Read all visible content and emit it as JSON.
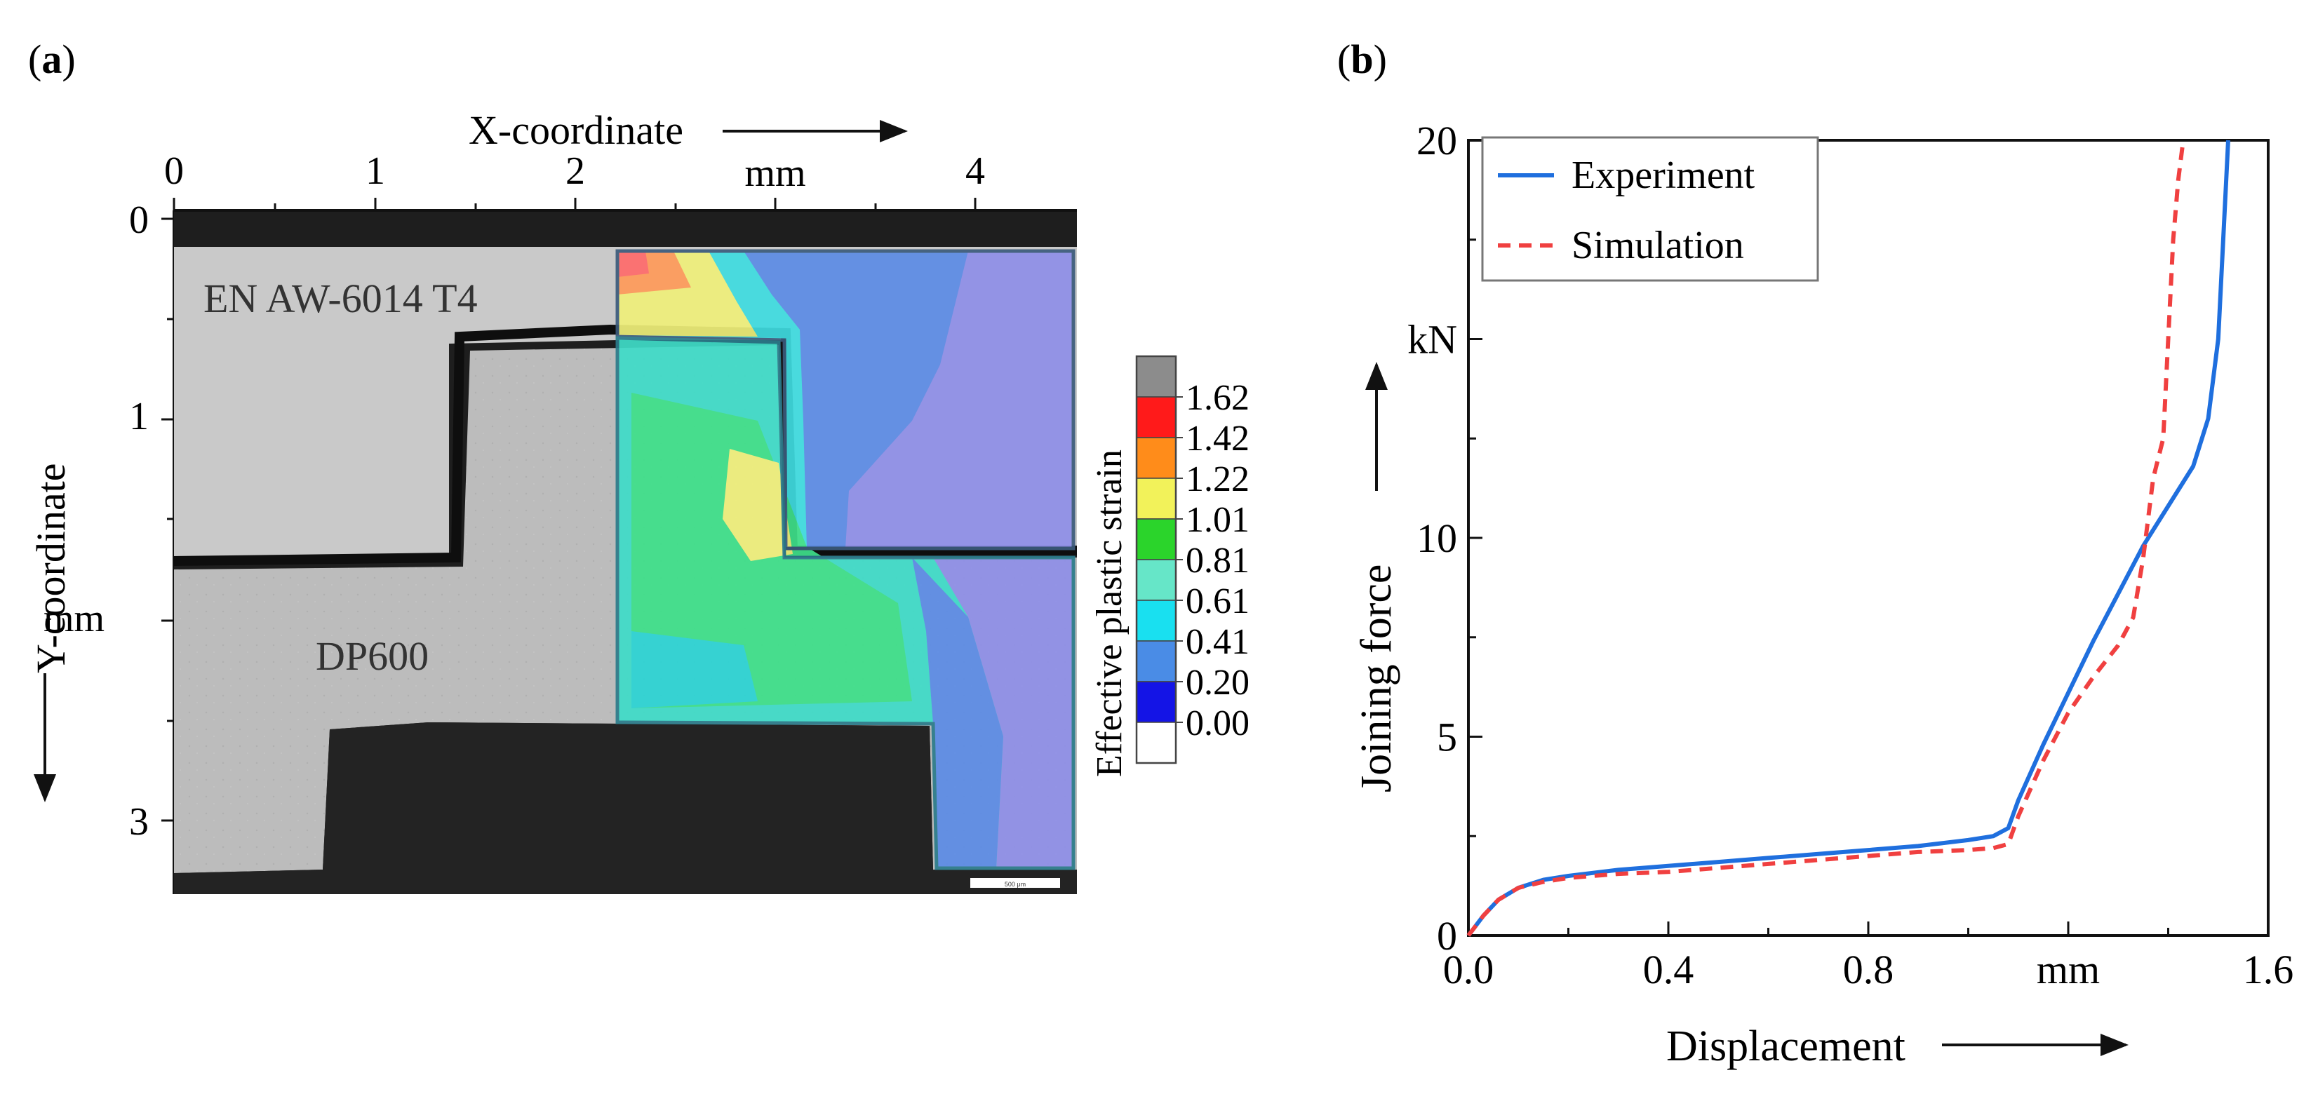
{
  "panels": {
    "a": {
      "label_open": "(",
      "label_letter": "a",
      "label_close": ")"
    },
    "b": {
      "label_open": "(",
      "label_letter": "b",
      "label_close": ")"
    }
  },
  "micrograph": {
    "x_axis_label": "X-coordinate",
    "x_unit": "mm",
    "x_ticks": [
      "0",
      "1",
      "2",
      "4"
    ],
    "y_axis_label": "Y-coordinate",
    "y_unit": "mm",
    "y_ticks": [
      "0",
      "1",
      "3"
    ],
    "upper_sheet_label": "EN AW-6014 T4",
    "lower_sheet_label": "DP600",
    "scale_bar_text": "500 μm",
    "colorbar": {
      "title": "Effective plastic strain",
      "levels": [
        "1.62",
        "1.42",
        "1.22",
        "1.01",
        "0.81",
        "0.61",
        "0.41",
        "0.20",
        "0.00"
      ],
      "colors": [
        "#8c8c8c",
        "#ff1a1a",
        "#ff8c1a",
        "#f2f25a",
        "#2bd42b",
        "#66e6c8",
        "#19e0f0",
        "#4a8ce6",
        "#1414e6",
        "#ffffff"
      ]
    }
  },
  "chart_data": {
    "type": "line",
    "xlabel": "Displacement",
    "x_unit": "mm",
    "ylabel": "Joining force",
    "y_unit": "kN",
    "xlim": [
      0,
      1.6
    ],
    "ylim": [
      0,
      20
    ],
    "x_tick_labels": [
      "0.0",
      "0.4",
      "0.8",
      "mm",
      "1.6"
    ],
    "y_tick_labels": [
      "0",
      "5",
      "10",
      "kN",
      "20"
    ],
    "legend_position": "top-left",
    "series": [
      {
        "name": "Experiment",
        "color": "#1f6fde",
        "style": "solid",
        "x": [
          0,
          0.03,
          0.06,
          0.1,
          0.15,
          0.2,
          0.3,
          0.4,
          0.5,
          0.6,
          0.7,
          0.8,
          0.9,
          1.0,
          1.05,
          1.08,
          1.1,
          1.15,
          1.2,
          1.25,
          1.3,
          1.35,
          1.4,
          1.45,
          1.48,
          1.5,
          1.51,
          1.52
        ],
        "y": [
          0,
          0.5,
          0.9,
          1.2,
          1.4,
          1.5,
          1.65,
          1.75,
          1.85,
          1.95,
          2.05,
          2.15,
          2.25,
          2.4,
          2.5,
          2.7,
          3.4,
          4.8,
          6.1,
          7.4,
          8.6,
          9.8,
          10.8,
          11.8,
          13.0,
          15.0,
          17.5,
          20.0
        ]
      },
      {
        "name": "Simulation",
        "color": "#f04040",
        "style": "dashed",
        "x": [
          0,
          0.03,
          0.06,
          0.1,
          0.15,
          0.2,
          0.3,
          0.4,
          0.5,
          0.6,
          0.7,
          0.8,
          0.9,
          1.0,
          1.05,
          1.08,
          1.1,
          1.15,
          1.2,
          1.25,
          1.3,
          1.33,
          1.35,
          1.37,
          1.39,
          1.4,
          1.41,
          1.42,
          1.43
        ],
        "y": [
          0,
          0.5,
          0.9,
          1.2,
          1.35,
          1.45,
          1.55,
          1.6,
          1.7,
          1.8,
          1.9,
          2.0,
          2.1,
          2.15,
          2.2,
          2.3,
          3.0,
          4.4,
          5.6,
          6.5,
          7.3,
          8.0,
          9.5,
          11.5,
          12.5,
          15.0,
          17.5,
          19.0,
          20.0
        ]
      }
    ]
  }
}
